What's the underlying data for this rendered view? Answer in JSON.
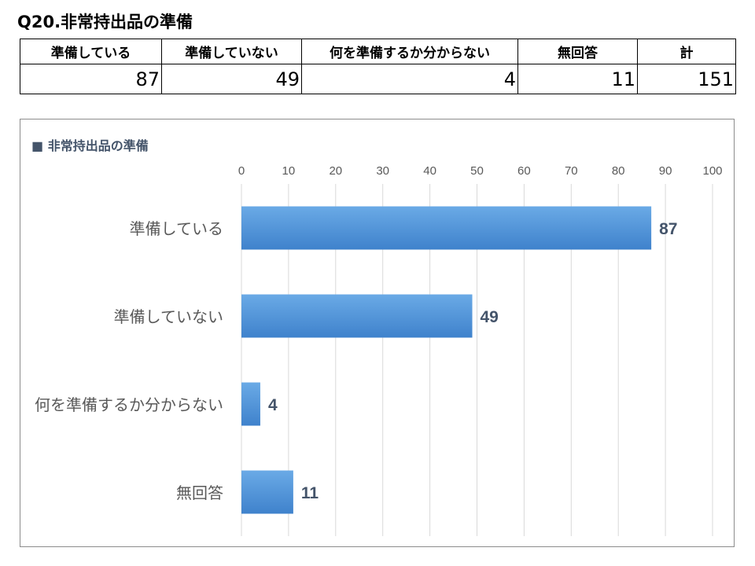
{
  "page": {
    "title": "Q20.非常持出品の準備"
  },
  "summary_table": {
    "headers": [
      "準備している",
      "準備していない",
      "何を準備するか分からない",
      "無回答",
      "計"
    ],
    "values": [
      "87",
      "49",
      "4",
      "11",
      "151"
    ]
  },
  "chart_data": {
    "type": "bar",
    "orientation": "horizontal",
    "title": "■ 非常持出品の準備",
    "categories": [
      "準備している",
      "準備していない",
      "何を準備するか分からない",
      "無回答"
    ],
    "values": [
      87,
      49,
      4,
      11
    ],
    "xlim": [
      0,
      100
    ],
    "xticks": [
      0,
      10,
      20,
      30,
      40,
      50,
      60,
      70,
      80,
      90,
      100
    ],
    "axis_position": "top",
    "grid": true,
    "data_labels": true,
    "colors": {
      "bar": "#4a8ed8",
      "bar_light": "#6aaae6",
      "label": "#44546a",
      "grid": "#d9d9d9"
    }
  }
}
